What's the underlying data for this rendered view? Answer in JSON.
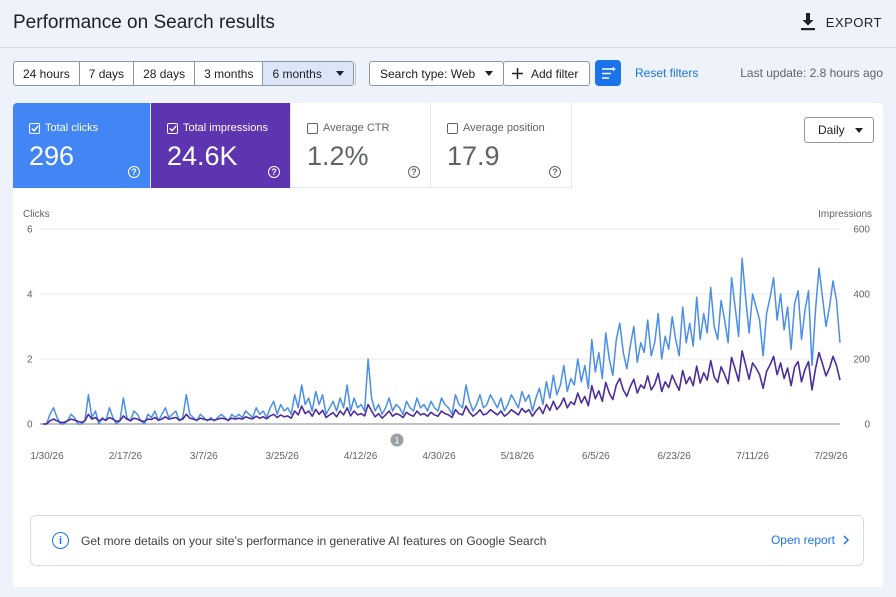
{
  "header": {
    "title": "Performance on Search results",
    "export_label": "EXPORT",
    "export_icon": "download-icon"
  },
  "toolbar": {
    "ranges": [
      "24 hours",
      "7 days",
      "28 days",
      "3 months",
      "6 months"
    ],
    "selected_range": "6 months",
    "search_type": "Search type: Web",
    "add_filter": "Add filter",
    "reset_filters": "Reset filters",
    "last_update": "Last update: 2.8 hours ago"
  },
  "metrics": [
    {
      "label": "Total clicks",
      "value": "296",
      "checked": true,
      "color": "#4285f4"
    },
    {
      "label": "Total impressions",
      "value": "24.6K",
      "checked": true,
      "color": "#5e35b1"
    },
    {
      "label": "Average CTR",
      "value": "1.2%",
      "checked": false
    },
    {
      "label": "Average position",
      "value": "17.9",
      "checked": false
    }
  ],
  "granularity": "Daily",
  "banner": {
    "text": "Get more details on your site’s performance in generative AI features on Google Search",
    "link": "Open report"
  },
  "chart_data": {
    "type": "line",
    "left_axis_label": "Clicks",
    "right_axis_label": "Impressions",
    "left_ticks": [
      "6",
      "4",
      "2",
      "0"
    ],
    "right_ticks": [
      "600",
      "400",
      "200",
      "0"
    ],
    "y_left_lim": [
      0,
      6
    ],
    "y_right_lim": [
      0,
      600
    ],
    "x_tick_labels": [
      "1/30/26",
      "2/17/26",
      "3/7/26",
      "3/25/26",
      "4/12/26",
      "4/30/26",
      "5/18/26",
      "6/5/26",
      "6/23/26",
      "7/11/26",
      "7/29/26"
    ],
    "annotation": "1",
    "grid": true,
    "series": [
      {
        "name": "Clicks",
        "color": "#4a8fe7",
        "axis": "left",
        "values": [
          0,
          0,
          0.3,
          0.5,
          0.2,
          0,
          0,
          0.1,
          0.3,
          0.2,
          0,
          0,
          0.1,
          0.9,
          0.2,
          0.4,
          0,
          0.2,
          0.1,
          0.5,
          0.2,
          0,
          0.1,
          0.8,
          0.2,
          0.1,
          0.4,
          0.3,
          0.1,
          0,
          0.3,
          0.2,
          0.4,
          0.1,
          0.3,
          0.5,
          0.2,
          0.3,
          0.4,
          0.1,
          0.2,
          0.9,
          0.3,
          0.2,
          0.1,
          0.3,
          0.2,
          0.1,
          0.2,
          0.1,
          0.2,
          0.3,
          0.2,
          0.1,
          0.3,
          0.2,
          0.3,
          0.2,
          0.4,
          0.3,
          0.2,
          0.5,
          0.3,
          0.4,
          0.2,
          0.5,
          0.7,
          0.3,
          0.6,
          0.4,
          0.5,
          0.3,
          0.9,
          0.5,
          1.2,
          0.6,
          0.8,
          0.4,
          1.0,
          0.6,
          0.9,
          0.3,
          0.5,
          0.7,
          0.4,
          0.8,
          0.5,
          1.2,
          0.4,
          0.8,
          0.5,
          0.6,
          0.4,
          2.0,
          0.8,
          0.4,
          0.6,
          0.3,
          0.5,
          0.8,
          0.4,
          0.6,
          0.5,
          0.3,
          0.7,
          0.5,
          0.4,
          0.8,
          0.5,
          0.6,
          0.4,
          0.7,
          0.5,
          0.4,
          0.8,
          0.6,
          0.5,
          0.3,
          0.9,
          0.6,
          0.5,
          1.2,
          0.7,
          0.4,
          0.6,
          0.9,
          0.5,
          0.6,
          0.9,
          0.7,
          0.5,
          0.8,
          0.4,
          0.6,
          0.9,
          0.7,
          0.5,
          1.0,
          0.7,
          0.9,
          0.4,
          0.8,
          1.1,
          0.6,
          1.3,
          0.8,
          1.5,
          0.9,
          1.2,
          1.8,
          1.0,
          1.4,
          1.2,
          2.0,
          1.3,
          1.8,
          1.1,
          2.6,
          1.6,
          2.2,
          1.4,
          2.8,
          2.0,
          1.5,
          2.6,
          3.1,
          2.2,
          1.7,
          2.4,
          3.0,
          1.9,
          2.5,
          2.2,
          3.2,
          2.1,
          2.5,
          3.4,
          2.0,
          2.7,
          2.3,
          3.3,
          2.6,
          2.1,
          3.6,
          2.5,
          3.1,
          2.4,
          3.9,
          2.6,
          3.4,
          2.8,
          4.2,
          3.0,
          2.6,
          3.8,
          3.2,
          2.5,
          4.5,
          3.6,
          2.7,
          5.1,
          3.9,
          2.8,
          4.0,
          3.6,
          3.2,
          2.1,
          3.4,
          3.9,
          4.5,
          3.2,
          4.0,
          2.9,
          3.6,
          2.3,
          3.7,
          4.1,
          2.6,
          3.5,
          4.1,
          1.8,
          3.5,
          4.8,
          3.9,
          3.0,
          3.6,
          4.4,
          3.8,
          2.5
        ]
      },
      {
        "name": "Impressions",
        "color": "#4c2c9e",
        "axis": "right",
        "values": [
          0,
          0,
          10,
          15,
          10,
          5,
          5,
          10,
          15,
          12,
          8,
          5,
          10,
          30,
          15,
          20,
          10,
          15,
          12,
          20,
          15,
          8,
          10,
          25,
          15,
          10,
          18,
          15,
          10,
          8,
          15,
          14,
          20,
          12,
          15,
          22,
          15,
          18,
          20,
          12,
          15,
          30,
          18,
          15,
          12,
          18,
          15,
          12,
          14,
          12,
          15,
          18,
          16,
          12,
          18,
          15,
          18,
          15,
          22,
          18,
          16,
          24,
          18,
          22,
          16,
          25,
          30,
          20,
          28,
          22,
          25,
          18,
          40,
          28,
          55,
          32,
          40,
          24,
          45,
          30,
          42,
          20,
          28,
          35,
          22,
          40,
          28,
          50,
          25,
          40,
          28,
          32,
          25,
          60,
          40,
          22,
          32,
          18,
          28,
          40,
          24,
          32,
          28,
          20,
          36,
          28,
          24,
          40,
          28,
          32,
          24,
          36,
          28,
          24,
          40,
          32,
          28,
          20,
          44,
          32,
          28,
          55,
          36,
          24,
          32,
          44,
          28,
          32,
          44,
          36,
          28,
          40,
          24,
          32,
          44,
          36,
          28,
          48,
          36,
          44,
          24,
          40,
          52,
          32,
          60,
          42,
          70,
          45,
          58,
          80,
          50,
          68,
          60,
          95,
          65,
          85,
          56,
          118,
          78,
          102,
          70,
          128,
          95,
          75,
          120,
          140,
          105,
          85,
          115,
          138,
          95,
          120,
          110,
          148,
          105,
          122,
          156,
          100,
          130,
          112,
          150,
          125,
          104,
          165,
          124,
          145,
          118,
          178,
          126,
          158,
          135,
          195,
          145,
          128,
          176,
          152,
          124,
          205,
          170,
          132,
          225,
          182,
          138,
          188,
          172,
          152,
          110,
          162,
          182,
          208,
          152,
          188,
          140,
          172,
          118,
          175,
          192,
          130,
          168,
          192,
          105,
          170,
          220,
          185,
          148,
          172,
          208,
          180,
          135
        ]
      }
    ]
  }
}
